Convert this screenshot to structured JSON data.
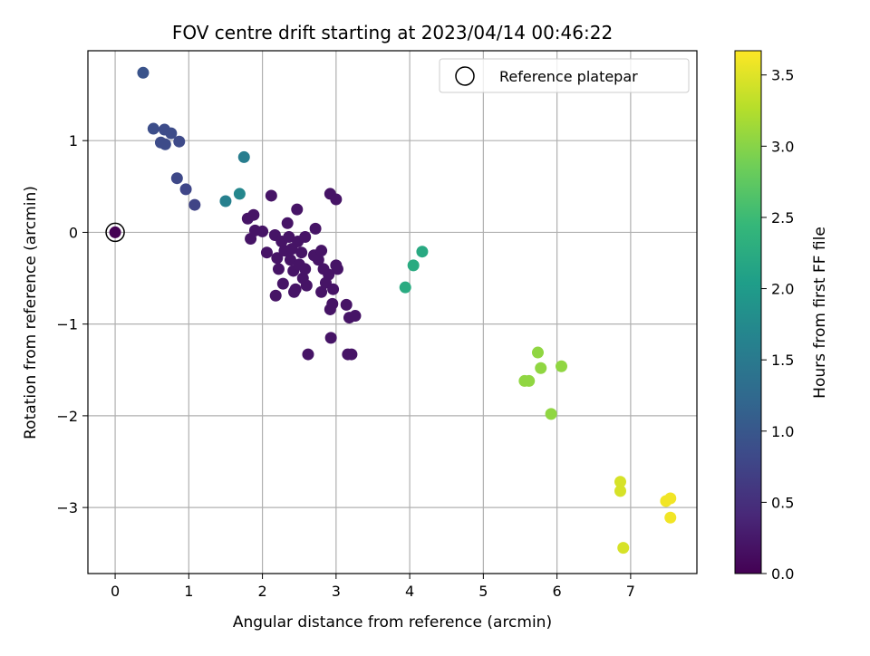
{
  "chart_data": {
    "type": "scatter",
    "title": "FOV centre drift starting at 2023/04/14 00:46:22",
    "xlabel": "Angular distance from reference (arcmin)",
    "ylabel": "Rotation from reference (arcmin)",
    "xlim": [
      -0.37,
      7.9
    ],
    "ylim": [
      -3.72,
      1.98
    ],
    "x_ticks": [
      0,
      1,
      2,
      3,
      4,
      5,
      6,
      7
    ],
    "x_tick_labels": [
      "0",
      "1",
      "2",
      "3",
      "4",
      "5",
      "6",
      "7"
    ],
    "y_ticks": [
      -3,
      -2,
      -1,
      0,
      1
    ],
    "y_tick_labels": [
      "−3",
      "−2",
      "−1",
      "0",
      "1"
    ],
    "grid": true,
    "legend": {
      "placement": "top-right",
      "entries": [
        "Reference platepar"
      ]
    },
    "colorbar": {
      "label": "Hours from first FF file",
      "range": [
        0.0,
        3.67
      ],
      "ticks": [
        0.0,
        0.5,
        1.0,
        1.5,
        2.0,
        2.5,
        3.0,
        3.5
      ],
      "tick_labels": [
        "0.0",
        "0.5",
        "1.0",
        "1.5",
        "2.0",
        "2.5",
        "3.0",
        "3.5"
      ],
      "colormap": "viridis",
      "colormap_stops": [
        "#440154",
        "#482878",
        "#3e4989",
        "#31688e",
        "#26828e",
        "#1f9e89",
        "#35b779",
        "#6ece58",
        "#b5de2b",
        "#fde725"
      ]
    },
    "reference_point": {
      "x": 0,
      "y": 0
    },
    "points": [
      {
        "x": 0.0,
        "y": 0.0,
        "c": 0.0
      },
      {
        "x": 0.38,
        "y": 1.74,
        "c": 0.95
      },
      {
        "x": 0.52,
        "y": 1.13,
        "c": 0.88
      },
      {
        "x": 0.62,
        "y": 0.98,
        "c": 0.85
      },
      {
        "x": 0.67,
        "y": 1.12,
        "c": 0.86
      },
      {
        "x": 0.68,
        "y": 0.96,
        "c": 0.84
      },
      {
        "x": 0.76,
        "y": 1.08,
        "c": 0.85
      },
      {
        "x": 0.87,
        "y": 0.99,
        "c": 0.83
      },
      {
        "x": 0.84,
        "y": 0.59,
        "c": 0.8
      },
      {
        "x": 0.96,
        "y": 0.47,
        "c": 0.78
      },
      {
        "x": 1.08,
        "y": 0.3,
        "c": 0.75
      },
      {
        "x": 1.5,
        "y": 0.34,
        "c": 1.6
      },
      {
        "x": 1.69,
        "y": 0.42,
        "c": 1.7
      },
      {
        "x": 1.75,
        "y": 0.82,
        "c": 1.55
      },
      {
        "x": 2.12,
        "y": 0.4,
        "c": 0.2
      },
      {
        "x": 1.8,
        "y": 0.15,
        "c": 0.2
      },
      {
        "x": 1.88,
        "y": 0.19,
        "c": 0.2
      },
      {
        "x": 1.84,
        "y": -0.07,
        "c": 0.2
      },
      {
        "x": 1.9,
        "y": 0.02,
        "c": 0.2
      },
      {
        "x": 2.0,
        "y": 0.01,
        "c": 0.2
      },
      {
        "x": 2.06,
        "y": -0.22,
        "c": 0.2
      },
      {
        "x": 2.17,
        "y": -0.03,
        "c": 0.2
      },
      {
        "x": 2.2,
        "y": -0.28,
        "c": 0.2
      },
      {
        "x": 2.22,
        "y": -0.4,
        "c": 0.2
      },
      {
        "x": 2.26,
        "y": -0.1,
        "c": 0.2
      },
      {
        "x": 2.3,
        "y": -0.2,
        "c": 0.2
      },
      {
        "x": 2.34,
        "y": 0.1,
        "c": 0.2
      },
      {
        "x": 2.36,
        "y": -0.05,
        "c": 0.2
      },
      {
        "x": 2.38,
        "y": -0.3,
        "c": 0.2
      },
      {
        "x": 2.4,
        "y": -0.18,
        "c": 0.2
      },
      {
        "x": 2.42,
        "y": -0.42,
        "c": 0.2
      },
      {
        "x": 2.45,
        "y": -0.62,
        "c": 0.2
      },
      {
        "x": 2.47,
        "y": 0.25,
        "c": 0.2
      },
      {
        "x": 2.48,
        "y": -0.1,
        "c": 0.2
      },
      {
        "x": 2.5,
        "y": -0.35,
        "c": 0.2
      },
      {
        "x": 2.53,
        "y": -0.22,
        "c": 0.2
      },
      {
        "x": 2.55,
        "y": -0.5,
        "c": 0.2
      },
      {
        "x": 2.58,
        "y": -0.4,
        "c": 0.2
      },
      {
        "x": 2.6,
        "y": -0.58,
        "c": 0.2
      },
      {
        "x": 2.62,
        "y": -1.33,
        "c": 0.2
      },
      {
        "x": 2.28,
        "y": -0.56,
        "c": 0.2
      },
      {
        "x": 2.18,
        "y": -0.69,
        "c": 0.2
      },
      {
        "x": 2.43,
        "y": -0.65,
        "c": 0.2
      },
      {
        "x": 2.58,
        "y": -0.05,
        "c": 0.2
      },
      {
        "x": 2.7,
        "y": -0.25,
        "c": 0.2
      },
      {
        "x": 2.72,
        "y": 0.04,
        "c": 0.2
      },
      {
        "x": 2.76,
        "y": -0.3,
        "c": 0.2
      },
      {
        "x": 2.8,
        "y": -0.2,
        "c": 0.2
      },
      {
        "x": 2.8,
        "y": -0.65,
        "c": 0.2
      },
      {
        "x": 2.83,
        "y": -0.4,
        "c": 0.2
      },
      {
        "x": 2.86,
        "y": -0.55,
        "c": 0.2
      },
      {
        "x": 2.9,
        "y": -0.46,
        "c": 0.2
      },
      {
        "x": 2.92,
        "y": 0.42,
        "c": 0.2
      },
      {
        "x": 2.92,
        "y": -0.84,
        "c": 0.2
      },
      {
        "x": 2.93,
        "y": -1.15,
        "c": 0.2
      },
      {
        "x": 2.95,
        "y": -0.78,
        "c": 0.2
      },
      {
        "x": 2.96,
        "y": -0.62,
        "c": 0.2
      },
      {
        "x": 3.0,
        "y": 0.36,
        "c": 0.2
      },
      {
        "x": 3.0,
        "y": -0.36,
        "c": 0.2
      },
      {
        "x": 3.02,
        "y": -0.4,
        "c": 0.2
      },
      {
        "x": 3.14,
        "y": -0.79,
        "c": 0.2
      },
      {
        "x": 3.16,
        "y": -1.33,
        "c": 0.2
      },
      {
        "x": 3.18,
        "y": -0.93,
        "c": 0.2
      },
      {
        "x": 3.21,
        "y": -1.33,
        "c": 0.2
      },
      {
        "x": 3.26,
        "y": -0.91,
        "c": 0.2
      },
      {
        "x": 3.94,
        "y": -0.6,
        "c": 2.25
      },
      {
        "x": 4.05,
        "y": -0.36,
        "c": 2.25
      },
      {
        "x": 4.17,
        "y": -0.21,
        "c": 2.22
      },
      {
        "x": 5.56,
        "y": -1.62,
        "c": 3.05
      },
      {
        "x": 5.62,
        "y": -1.62,
        "c": 3.05
      },
      {
        "x": 5.74,
        "y": -1.31,
        "c": 3.05
      },
      {
        "x": 5.78,
        "y": -1.48,
        "c": 3.05
      },
      {
        "x": 5.92,
        "y": -1.98,
        "c": 3.05
      },
      {
        "x": 6.06,
        "y": -1.46,
        "c": 3.05
      },
      {
        "x": 6.86,
        "y": -2.72,
        "c": 3.45
      },
      {
        "x": 6.86,
        "y": -2.82,
        "c": 3.45
      },
      {
        "x": 6.9,
        "y": -3.44,
        "c": 3.45
      },
      {
        "x": 7.48,
        "y": -2.93,
        "c": 3.6
      },
      {
        "x": 7.54,
        "y": -2.9,
        "c": 3.6
      },
      {
        "x": 7.54,
        "y": -3.11,
        "c": 3.6
      }
    ]
  }
}
